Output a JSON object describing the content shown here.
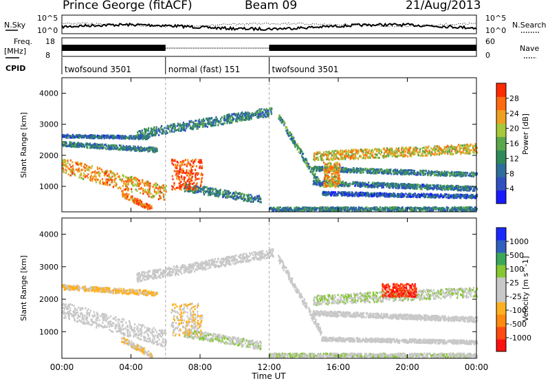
{
  "header": {
    "station": "Prince George (fitACF)",
    "beam": "Beam 09",
    "date": "21/Aug/2013"
  },
  "panels": {
    "sky_label": "N.Sky",
    "sky_ticks": [
      "10^5",
      "10^0"
    ],
    "search_label": "N.Search",
    "freq_label_1": "Freq.",
    "freq_label_2": "[MHz]",
    "freq_ticks": [
      "18",
      "8"
    ],
    "nave_label": "Nave",
    "nave_ticks": [
      "60",
      "0"
    ],
    "cpid_label": "CPID",
    "cpid_segments": [
      {
        "label": "twofsound 3501",
        "start_hour": 0,
        "end_hour": 6
      },
      {
        "label": "normal (fast) 151",
        "start_hour": 6,
        "end_hour": 12
      },
      {
        "label": "twofsound 3501",
        "start_hour": 12,
        "end_hour": 24
      }
    ]
  },
  "colors": {
    "power_scale": [
      "#1a1aff",
      "#3050c0",
      "#2d6e9a",
      "#2f8a5a",
      "#5aa84a",
      "#a8c83c",
      "#f0a020",
      "#ff6a10",
      "#ff2a00"
    ],
    "velocity_scale": [
      "#ff1010",
      "#ff4a10",
      "#ff8a10",
      "#ffb020",
      "#c8c8c8",
      "#c8c8c8",
      "#86c832",
      "#3aa85a",
      "#3060c0",
      "#1a2aff"
    ]
  },
  "chart_data": [
    {
      "type": "heatmap",
      "title": "",
      "xlabel": "",
      "ylabel": "Slant Range [km]",
      "colorbar_label": "Power [dB]",
      "colorbar_ticks": [
        "4",
        "8",
        "12",
        "16",
        "20",
        "24",
        "28"
      ],
      "colorbar_range": [
        0,
        30
      ],
      "x_ticks": [
        "00:00",
        "04:00",
        "08:00",
        "12:00",
        "16:00",
        "20:00",
        "00:00"
      ],
      "xlim_hours": [
        0,
        24
      ],
      "y_ticks": [
        "1000",
        "2000",
        "3000",
        "4000"
      ],
      "ylim_km": [
        180,
        4500
      ],
      "grid": false,
      "regions": [
        {
          "name": "",
          "type": "band",
          "t0": 0,
          "t1": 6,
          "r_start": 1700,
          "r_end": 800,
          "w": 500,
          "v": 22
        },
        {
          "name": "",
          "type": "band",
          "t0": 0,
          "t1": 5.5,
          "r_start": 2400,
          "r_end": 2200,
          "w": 150,
          "v": 10
        },
        {
          "name": "",
          "type": "band",
          "t0": 0,
          "t1": 5,
          "r_start": 2650,
          "r_end": 2600,
          "w": 100,
          "v": 8
        },
        {
          "name": "",
          "type": "band",
          "t0": 3.4,
          "t1": 5.2,
          "r_start": 800,
          "r_end": 300,
          "w": 180,
          "v": 25
        },
        {
          "name": "",
          "type": "band",
          "t0": 4.3,
          "t1": 12.2,
          "r_start": 2700,
          "r_end": 3450,
          "w": 280,
          "v": 10
        },
        {
          "name": "",
          "type": "band",
          "t0": 7,
          "t1": 11.5,
          "r_start": 1000,
          "r_end": 600,
          "w": 250,
          "v": 10
        },
        {
          "name": "",
          "type": "band",
          "t0": 12,
          "t1": 24,
          "r_start": 300,
          "r_end": 300,
          "w": 120,
          "v": 10
        },
        {
          "name": "",
          "type": "band",
          "t0": 12.5,
          "t1": 15,
          "r_start": 3300,
          "r_end": 1000,
          "w": 220,
          "v": 12
        },
        {
          "name": "",
          "type": "band",
          "t0": 14.5,
          "t1": 24,
          "r_start": 2000,
          "r_end": 2250,
          "w": 300,
          "v": 20
        },
        {
          "name": "",
          "type": "band",
          "t0": 14.5,
          "t1": 24,
          "r_start": 1600,
          "r_end": 1400,
          "w": 150,
          "v": 10
        },
        {
          "name": "",
          "type": "band",
          "t0": 14.5,
          "t1": 24,
          "r_start": 1150,
          "r_end": 950,
          "w": 150,
          "v": 9
        },
        {
          "name": "",
          "type": "band",
          "t0": 15,
          "t1": 24,
          "r_start": 800,
          "r_end": 700,
          "w": 120,
          "v": 6
        },
        {
          "name": "",
          "type": "blob",
          "t": 7.2,
          "r": 1400,
          "dt": 0.9,
          "dr": 500,
          "v": 27
        },
        {
          "name": "",
          "type": "blob",
          "t": 15.6,
          "r": 1400,
          "dt": 0.5,
          "dr": 400,
          "v": 21
        }
      ]
    },
    {
      "type": "heatmap",
      "title": "",
      "xlabel": "Time UT",
      "ylabel": "Slant Range [km]",
      "colorbar_label": "Velocity [m s^-1]",
      "colorbar_ticks": [
        "-1000",
        "-500",
        "-100",
        "-25",
        "25",
        "100",
        "500",
        "1000"
      ],
      "colorbar_range": [
        -1000,
        1000
      ],
      "x_ticks": [
        "00:00",
        "04:00",
        "08:00",
        "12:00",
        "16:00",
        "20:00",
        "00:00"
      ],
      "xlim_hours": [
        0,
        24
      ],
      "y_ticks": [
        "1000",
        "2000",
        "3000",
        "4000"
      ],
      "ylim_km": [
        180,
        4500
      ],
      "grid": false,
      "regions": [
        {
          "name": "",
          "type": "band",
          "t0": 0,
          "t1": 6,
          "r_start": 1700,
          "r_end": 800,
          "w": 500,
          "v": 0
        },
        {
          "name": "",
          "type": "band",
          "t0": 0,
          "t1": 5.5,
          "r_start": 2400,
          "r_end": 2200,
          "w": 150,
          "v": -250
        },
        {
          "name": "",
          "type": "band",
          "t0": 3.4,
          "t1": 5.2,
          "r_start": 800,
          "r_end": 300,
          "w": 180,
          "v": -180
        },
        {
          "name": "",
          "type": "band",
          "t0": 4.3,
          "t1": 12.2,
          "r_start": 2700,
          "r_end": 3450,
          "w": 280,
          "v": 0
        },
        {
          "name": "",
          "type": "band",
          "t0": 7,
          "t1": 11.5,
          "r_start": 1000,
          "r_end": 600,
          "w": 250,
          "v": 150
        },
        {
          "name": "",
          "type": "band",
          "t0": 12,
          "t1": 24,
          "r_start": 300,
          "r_end": 300,
          "w": 120,
          "v": 120
        },
        {
          "name": "",
          "type": "band",
          "t0": 12.5,
          "t1": 15,
          "r_start": 3300,
          "r_end": 1000,
          "w": 220,
          "v": 0
        },
        {
          "name": "",
          "type": "band",
          "t0": 14.5,
          "t1": 24,
          "r_start": 2000,
          "r_end": 2250,
          "w": 300,
          "v": 150
        },
        {
          "name": "",
          "type": "band",
          "t0": 14.5,
          "t1": 24,
          "r_start": 1600,
          "r_end": 1400,
          "w": 150,
          "v": 0
        },
        {
          "name": "",
          "type": "band",
          "t0": 15,
          "t1": 24,
          "r_start": 800,
          "r_end": 700,
          "w": 120,
          "v": 50
        },
        {
          "name": "",
          "type": "blob",
          "t": 7.2,
          "r": 1400,
          "dt": 0.9,
          "dr": 500,
          "v": -200
        },
        {
          "name": "",
          "type": "blob",
          "t": 19.5,
          "r": 2300,
          "dt": 1.0,
          "dr": 200,
          "v": -800
        }
      ]
    }
  ]
}
